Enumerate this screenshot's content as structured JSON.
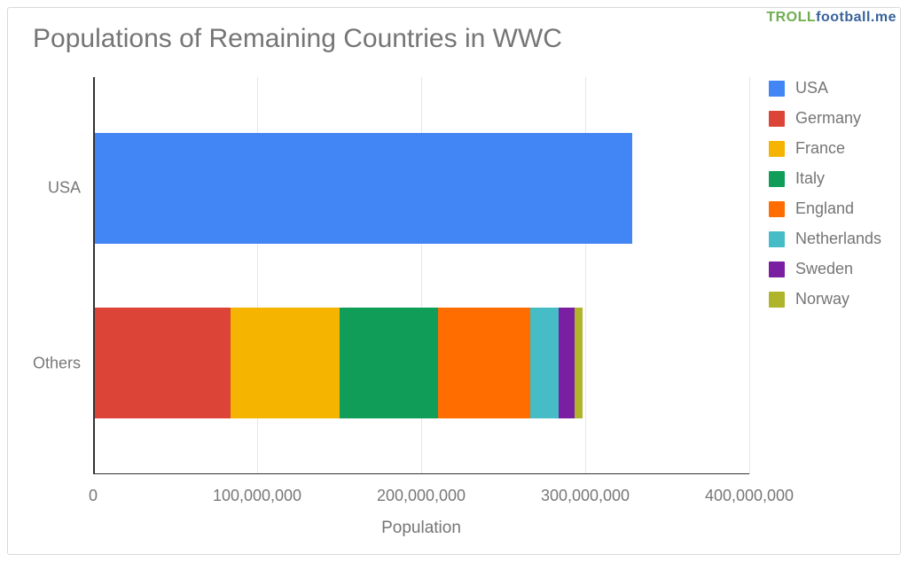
{
  "watermark": {
    "part1": "TROLL",
    "part2": "football.me"
  },
  "chart": {
    "type": "bar-stacked-horizontal",
    "title": "Populations of Remaining Countries in WWC",
    "title_fontsize": 30,
    "title_color": "#757575",
    "background_color": "#ffffff",
    "grid_color": "#e6e6e6",
    "axis_color": "#333333",
    "tick_font_color": "#787878",
    "tick_fontsize": 18,
    "xlabel": "Population",
    "xlabel_fontsize": 19,
    "xlim": [
      0,
      400000000
    ],
    "xtick_step": 100000000,
    "xticks": [
      0,
      100000000,
      200000000,
      300000000,
      400000000
    ],
    "xtick_labels": [
      "0",
      "100,000,000",
      "200,000,000",
      "300,000,000",
      "400,000,000"
    ],
    "categories": [
      "USA",
      "Others"
    ],
    "series": [
      {
        "name": "USA",
        "color": "#4285f4",
        "values": [
          328000000,
          0
        ]
      },
      {
        "name": "Germany",
        "color": "#db4437",
        "values": [
          0,
          83000000
        ]
      },
      {
        "name": "France",
        "color": "#f4b400",
        "values": [
          0,
          67000000
        ]
      },
      {
        "name": "Italy",
        "color": "#0f9d58",
        "values": [
          0,
          60000000
        ]
      },
      {
        "name": "England",
        "color": "#ff6d00",
        "values": [
          0,
          56000000
        ]
      },
      {
        "name": "Netherlands",
        "color": "#46bdc6",
        "values": [
          0,
          17000000
        ]
      },
      {
        "name": "Sweden",
        "color": "#7b1fa2",
        "values": [
          0,
          10000000
        ]
      },
      {
        "name": "Norway",
        "color": "#afb42b",
        "values": [
          0,
          5000000
        ]
      }
    ],
    "bar_height_ratio": 0.56,
    "row_centers_ratio": [
      0.28,
      0.72
    ]
  }
}
